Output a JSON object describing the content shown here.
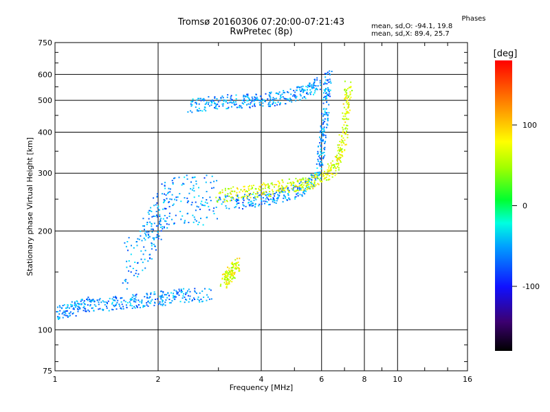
{
  "chart_data": {
    "type": "scatter",
    "title": "Tromsø 20160306 07:20:00-07:21:43",
    "subtitle": "RwPretec (8p)",
    "xlabel": "Frequency [MHz]",
    "ylabel": "Stationary phase Virtual Height [km]",
    "x_scale": "log",
    "y_scale": "log",
    "xlim": [
      1,
      16
    ],
    "ylim": [
      75,
      750
    ],
    "x_ticks": [
      "1",
      "2",
      "4",
      "6",
      "8",
      "10",
      "16"
    ],
    "y_ticks": [
      "75",
      "100",
      "200",
      "300",
      "400",
      "500",
      "600",
      "750"
    ],
    "grid": true,
    "stats": {
      "heading": "Phases",
      "line_o": "mean, sd,O: -94.1, 19.8",
      "line_x": "mean, sd,X:  89.4, 25.7"
    },
    "colorbar": {
      "label": "[deg]",
      "ticks": [
        "100",
        "0",
        "-100"
      ],
      "range": [
        -180,
        180
      ],
      "colormap": "rainbow"
    },
    "traces": [
      {
        "trace": "O-low-E",
        "phase_mean": -94,
        "points": [
          [
            1.0,
            112
          ],
          [
            1.1,
            115
          ],
          [
            1.2,
            118
          ],
          [
            1.3,
            120
          ],
          [
            1.5,
            120
          ],
          [
            1.7,
            122
          ],
          [
            1.9,
            124
          ],
          [
            2.1,
            125
          ],
          [
            2.4,
            127
          ],
          [
            2.8,
            128
          ]
        ]
      },
      {
        "trace": "O-F-rise",
        "phase_mean": -94,
        "points": [
          [
            1.6,
            155
          ],
          [
            1.8,
            175
          ],
          [
            1.9,
            200
          ],
          [
            2.0,
            220
          ],
          [
            2.1,
            240
          ],
          [
            2.3,
            250
          ],
          [
            2.6,
            250
          ],
          [
            3.0,
            245
          ],
          [
            3.5,
            245
          ],
          [
            4.0,
            250
          ],
          [
            4.5,
            255
          ],
          [
            5.0,
            262
          ],
          [
            5.5,
            275
          ],
          [
            5.9,
            300
          ],
          [
            6.0,
            360
          ],
          [
            6.1,
            420
          ],
          [
            6.2,
            520
          ],
          [
            6.3,
            620
          ]
        ]
      },
      {
        "trace": "O-high",
        "phase_mean": -94,
        "points": [
          [
            2.45,
            480
          ],
          [
            2.8,
            490
          ],
          [
            3.2,
            495
          ],
          [
            3.6,
            498
          ],
          [
            4.0,
            500
          ],
          [
            4.5,
            505
          ],
          [
            5.0,
            520
          ],
          [
            5.5,
            535
          ],
          [
            5.9,
            560
          ]
        ]
      },
      {
        "trace": "X-F",
        "phase_mean": 89,
        "points": [
          [
            3.0,
            255
          ],
          [
            3.5,
            262
          ],
          [
            4.0,
            265
          ],
          [
            4.5,
            270
          ],
          [
            5.0,
            275
          ],
          [
            5.5,
            280
          ],
          [
            6.0,
            290
          ],
          [
            6.5,
            310
          ],
          [
            6.8,
            340
          ],
          [
            7.0,
            400
          ],
          [
            7.1,
            480
          ],
          [
            7.2,
            560
          ]
        ]
      },
      {
        "trace": "X-low",
        "phase_mean": 89,
        "points": [
          [
            3.1,
            140
          ],
          [
            3.2,
            145
          ],
          [
            3.3,
            150
          ],
          [
            3.4,
            160
          ]
        ]
      }
    ]
  }
}
